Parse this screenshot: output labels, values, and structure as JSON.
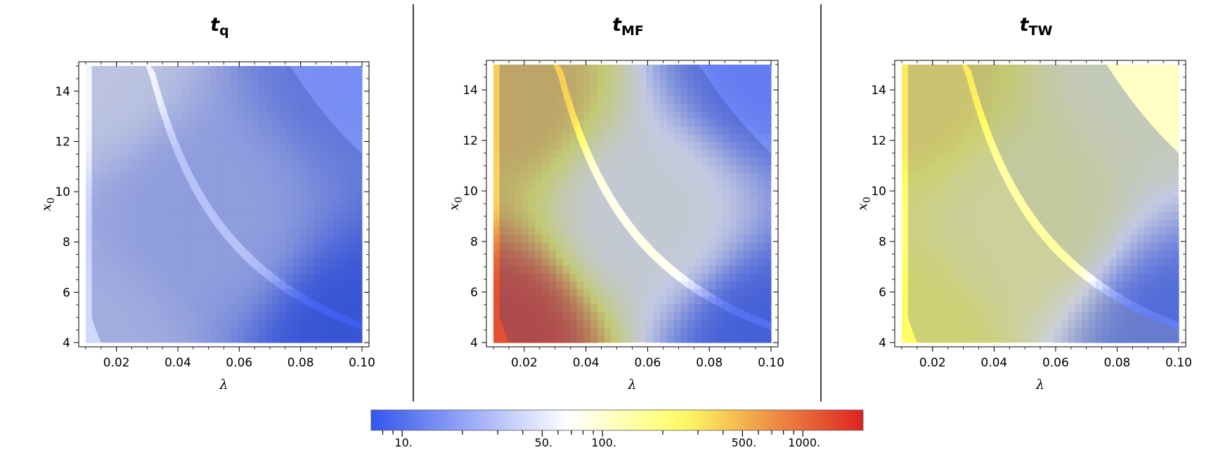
{
  "chart_data": {
    "type": "heatmap",
    "xlabel": "λ",
    "ylabel": "x",
    "ylabel_subscript": "0",
    "xlim": [
      0.01,
      0.1
    ],
    "ylim": [
      4,
      15
    ],
    "x_ticks": [
      "0.02",
      "0.04",
      "0.06",
      "0.08",
      "0.10"
    ],
    "x_tick_values": [
      0.02,
      0.04,
      0.06,
      0.08,
      0.1
    ],
    "y_ticks": [
      "4",
      "6",
      "8",
      "10",
      "12",
      "14"
    ],
    "y_tick_values": [
      4,
      6,
      8,
      10,
      12,
      14
    ],
    "grid": false,
    "panels": [
      {
        "title": "t",
        "subscript": "q",
        "subscript_italic": true,
        "description": "values mostly 10–60; lightest in upper-left band, darker blue toward bottom-right",
        "scale_anchor": [
          [
            0.01,
            15,
            60
          ],
          [
            0.1,
            4,
            8
          ],
          [
            0.01,
            4,
            40
          ],
          [
            0.1,
            15,
            15
          ],
          [
            0.05,
            9,
            30
          ]
        ]
      },
      {
        "title": "t",
        "subscript": "MF",
        "subscript_italic": false,
        "description": "high values (yellow ~200–1000) near small λ, red at bottom-left corner; blue toward large λ",
        "scale_anchor": [
          [
            0.012,
            4.2,
            1300
          ],
          [
            0.015,
            14,
            400
          ],
          [
            0.06,
            9,
            80
          ],
          [
            0.1,
            4,
            10
          ],
          [
            0.1,
            15,
            12
          ]
        ]
      },
      {
        "title": "t",
        "subscript": "TW",
        "subscript_italic": false,
        "description": "mostly yellow/white (100–300) across center; blue bands at large λ; gray shaded masked region lower-left",
        "scale_anchor": [
          [
            0.015,
            14,
            300
          ],
          [
            0.05,
            9,
            150
          ],
          [
            0.1,
            4,
            12
          ],
          [
            0.09,
            15,
            110
          ],
          [
            0.01,
            4,
            250
          ]
        ]
      }
    ],
    "colorbar": {
      "scale": "log",
      "range": [
        7,
        2000
      ],
      "tick_labels": [
        "10.",
        "50.",
        "100.",
        "500.",
        "1000."
      ],
      "tick_values": [
        10,
        50,
        100,
        500,
        1000
      ],
      "colors": [
        "#3355ee",
        "#ffffff",
        "#ffff66",
        "#dd2222"
      ]
    }
  }
}
